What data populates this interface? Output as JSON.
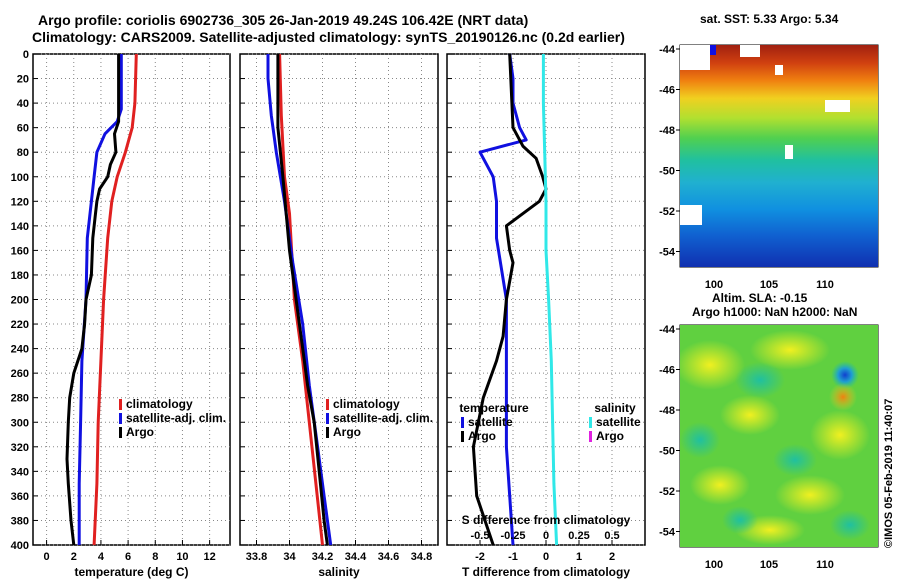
{
  "title_line1": "Argo profile: coriolis 6902736_305 26-Jan-2019 49.24S 106.42E (NRT data)",
  "title_line2": "Climatology: CARS2009. Satellite-adjusted climatology: synTS_20190126.nc (0.2d earlier)",
  "colors": {
    "climatology": "#e02020",
    "satellite": "#1010e0",
    "argo": "#000000",
    "cyan": "#30e8e8",
    "magenta": "#e020e0"
  },
  "chart_data": [
    {
      "type": "line",
      "xlabel": "temperature (deg C)",
      "xlim": [
        -1,
        13.5
      ],
      "xticks": [
        0,
        2,
        4,
        6,
        8,
        10,
        12
      ],
      "ylim": [
        0,
        400
      ],
      "yticks": [
        0,
        20,
        40,
        60,
        80,
        100,
        120,
        140,
        160,
        180,
        200,
        220,
        240,
        260,
        280,
        300,
        320,
        340,
        360,
        380,
        400
      ],
      "legend": [
        "climatology",
        "satellite-adj. clim.",
        "Argo"
      ],
      "series": [
        {
          "name": "climatology",
          "color": "#e02020",
          "points": [
            [
              6.6,
              0
            ],
            [
              6.5,
              40
            ],
            [
              6.3,
              60
            ],
            [
              5.8,
              80
            ],
            [
              5.2,
              100
            ],
            [
              4.8,
              120
            ],
            [
              4.5,
              150
            ],
            [
              4.2,
              200
            ],
            [
              4.0,
              250
            ],
            [
              3.8,
              300
            ],
            [
              3.7,
              350
            ],
            [
              3.5,
              400
            ]
          ]
        },
        {
          "name": "satellite-adj. clim.",
          "color": "#1010e0",
          "points": [
            [
              5.5,
              0
            ],
            [
              5.5,
              20
            ],
            [
              5.5,
              45
            ],
            [
              5.2,
              55
            ],
            [
              4.3,
              65
            ],
            [
              3.7,
              80
            ],
            [
              3.5,
              100
            ],
            [
              3.3,
              120
            ],
            [
              3.0,
              150
            ],
            [
              2.9,
              200
            ],
            [
              2.6,
              250
            ],
            [
              2.5,
              300
            ],
            [
              2.4,
              350
            ],
            [
              2.4,
              400
            ]
          ]
        },
        {
          "name": "Argo",
          "color": "#000000",
          "points": [
            [
              5.3,
              0
            ],
            [
              5.3,
              20
            ],
            [
              5.3,
              55
            ],
            [
              5.0,
              65
            ],
            [
              5.1,
              80
            ],
            [
              4.7,
              90
            ],
            [
              4.5,
              100
            ],
            [
              3.9,
              110
            ],
            [
              3.7,
              120
            ],
            [
              3.6,
              130
            ],
            [
              3.4,
              150
            ],
            [
              3.3,
              180
            ],
            [
              2.9,
              200
            ],
            [
              2.8,
              220
            ],
            [
              2.6,
              240
            ],
            [
              2.0,
              260
            ],
            [
              1.7,
              280
            ],
            [
              1.6,
              300
            ],
            [
              1.5,
              330
            ],
            [
              1.6,
              350
            ],
            [
              1.8,
              380
            ],
            [
              2.0,
              400
            ]
          ]
        }
      ]
    },
    {
      "type": "line",
      "xlabel": "salinity",
      "xlim": [
        33.7,
        34.9
      ],
      "xticks": [
        33.8,
        34,
        34.2,
        34.4,
        34.6,
        34.8
      ],
      "xticklabels": [
        "33.8",
        "34",
        "34.2",
        "34.4",
        "34.6",
        "34.8"
      ],
      "ylim": [
        0,
        400
      ],
      "legend": [
        "climatology",
        "satellite-adj. clim.",
        "Argo"
      ],
      "series": [
        {
          "name": "climatology",
          "color": "#e02020",
          "points": [
            [
              33.94,
              0
            ],
            [
              33.95,
              50
            ],
            [
              33.97,
              100
            ],
            [
              34.0,
              130
            ],
            [
              34.03,
              200
            ],
            [
              34.08,
              250
            ],
            [
              34.12,
              300
            ],
            [
              34.16,
              350
            ],
            [
              34.2,
              400
            ]
          ]
        },
        {
          "name": "satellite-adj. clim.",
          "color": "#1010e0",
          "points": [
            [
              33.87,
              0
            ],
            [
              33.87,
              20
            ],
            [
              33.89,
              50
            ],
            [
              33.92,
              80
            ],
            [
              33.97,
              120
            ],
            [
              34.02,
              170
            ],
            [
              34.08,
              220
            ],
            [
              34.12,
              270
            ],
            [
              34.17,
              320
            ],
            [
              34.21,
              360
            ],
            [
              34.25,
              400
            ]
          ]
        },
        {
          "name": "Argo",
          "color": "#000000",
          "points": [
            [
              33.93,
              0
            ],
            [
              33.93,
              60
            ],
            [
              33.96,
              100
            ],
            [
              33.98,
              130
            ],
            [
              34.0,
              160
            ],
            [
              34.04,
              200
            ],
            [
              34.08,
              240
            ],
            [
              34.11,
              270
            ],
            [
              34.15,
              300
            ],
            [
              34.18,
              340
            ],
            [
              34.21,
              380
            ],
            [
              34.23,
              400
            ]
          ]
        }
      ]
    },
    {
      "type": "line",
      "xlabel": "T difference from climatology",
      "xlim": [
        -3,
        3
      ],
      "xticks": [
        -2,
        -1,
        0,
        1,
        2
      ],
      "secondary_xlabel": "S difference from climatology",
      "secondary_xlim": [
        -0.75,
        0.75
      ],
      "secondary_xticks": [
        -0.5,
        -0.25,
        0,
        0.25,
        0.5
      ],
      "ylim": [
        0,
        400
      ],
      "legend_left_title": "temperature",
      "legend_right_title": "salinity",
      "legend": [
        "satellite",
        "Argo",
        "satellite",
        "Argo"
      ],
      "series": [
        {
          "name": "temperature satellite",
          "color": "#1010e0",
          "points": [
            [
              -1.1,
              0
            ],
            [
              -1.0,
              20
            ],
            [
              -1.0,
              40
            ],
            [
              -0.8,
              60
            ],
            [
              -0.6,
              70
            ],
            [
              -2.0,
              80
            ],
            [
              -1.6,
              100
            ],
            [
              -1.5,
              120
            ],
            [
              -1.5,
              150
            ],
            [
              -1.2,
              200
            ],
            [
              -1.2,
              240
            ],
            [
              -1.2,
              280
            ],
            [
              -1.2,
              320
            ],
            [
              -1.1,
              360
            ],
            [
              -1.0,
              400
            ]
          ]
        },
        {
          "name": "temperature Argo",
          "color": "#000000",
          "points": [
            [
              -1.1,
              0
            ],
            [
              -1.0,
              60
            ],
            [
              -0.7,
              75
            ],
            [
              -0.3,
              85
            ],
            [
              -0.1,
              100
            ],
            [
              0.0,
              110
            ],
            [
              -0.2,
              120
            ],
            [
              -0.7,
              130
            ],
            [
              -1.2,
              140
            ],
            [
              -1.1,
              160
            ],
            [
              -1.0,
              170
            ],
            [
              -1.2,
              200
            ],
            [
              -1.3,
              230
            ],
            [
              -1.5,
              250
            ],
            [
              -1.9,
              280
            ],
            [
              -2.2,
              320
            ],
            [
              -2.1,
              360
            ],
            [
              -1.6,
              400
            ]
          ]
        },
        {
          "name": "salinity satellite",
          "color": "#30e8e8",
          "points": [
            [
              -0.02,
              0
            ],
            [
              -0.02,
              40
            ],
            [
              -0.01,
              80
            ],
            [
              0.0,
              120
            ],
            [
              0.0,
              160
            ],
            [
              0.02,
              200
            ],
            [
              0.04,
              250
            ],
            [
              0.05,
              300
            ],
            [
              0.06,
              350
            ],
            [
              0.08,
              400
            ]
          ]
        }
      ]
    }
  ],
  "sst_panel": {
    "title": "sat. SST: 5.33 Argo: 5.34",
    "yticks": [
      "-44",
      "-46",
      "-48",
      "-50",
      "-52",
      "-54"
    ],
    "xticks": [
      "100",
      "105",
      "110"
    ]
  },
  "sla_panel": {
    "title_line1": "Altim. SLA: -0.15",
    "title_line2": "Argo h1000: NaN h2000: NaN",
    "yticks": [
      "-44",
      "-46",
      "-48",
      "-50",
      "-52",
      "-54"
    ],
    "xticks": [
      "100",
      "105",
      "110"
    ]
  },
  "timestamp": "©IMOS 05-Feb-2019 11:40:07"
}
